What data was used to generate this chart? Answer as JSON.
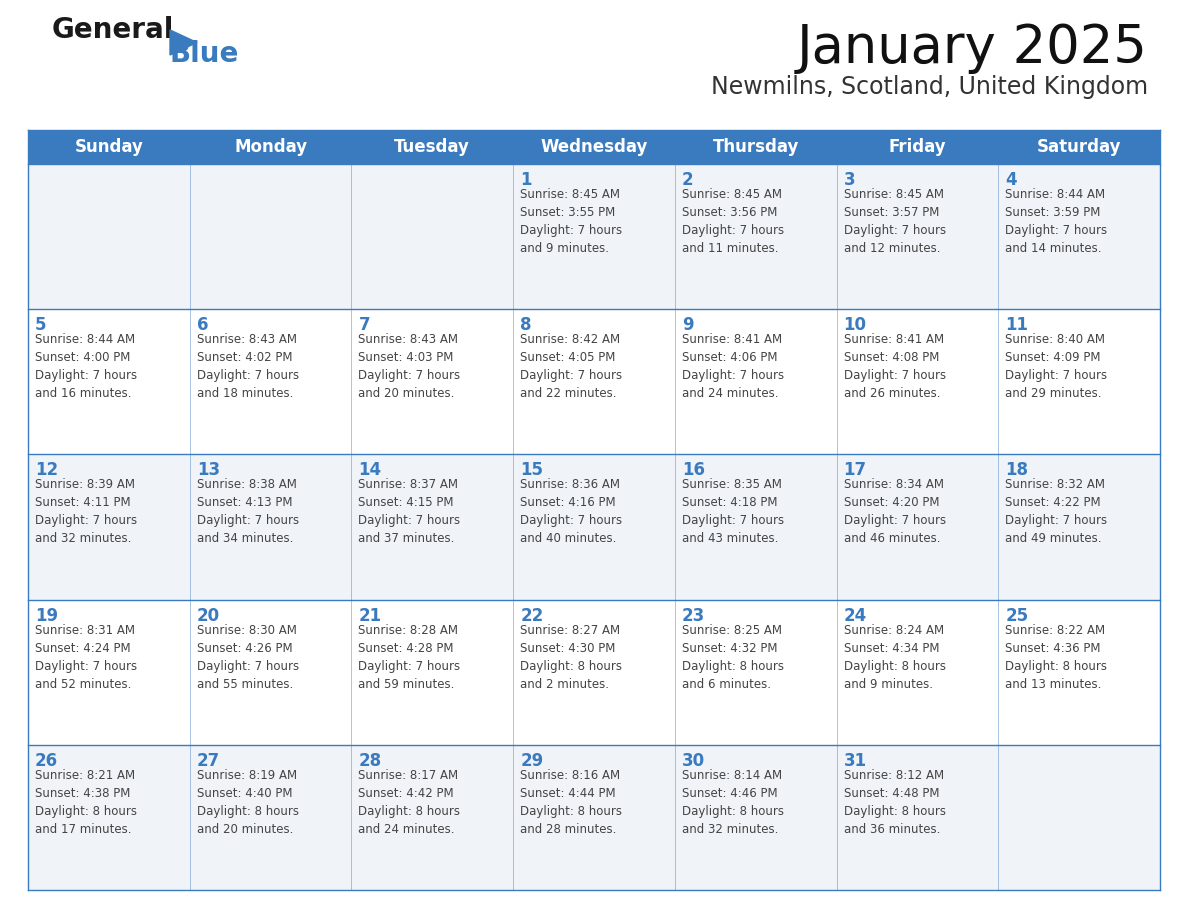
{
  "title": "January 2025",
  "subtitle": "Newmilns, Scotland, United Kingdom",
  "header_bg": "#3a7abf",
  "header_text_color": "#ffffff",
  "cell_bg_even": "#f0f4f8",
  "cell_bg_odd": "#ffffff",
  "border_color": "#3a7abf",
  "day_number_color": "#3a7abf",
  "cell_text_color": "#444444",
  "days_of_week": [
    "Sunday",
    "Monday",
    "Tuesday",
    "Wednesday",
    "Thursday",
    "Friday",
    "Saturday"
  ],
  "weeks": [
    [
      {
        "day": "",
        "info": ""
      },
      {
        "day": "",
        "info": ""
      },
      {
        "day": "",
        "info": ""
      },
      {
        "day": "1",
        "info": "Sunrise: 8:45 AM\nSunset: 3:55 PM\nDaylight: 7 hours\nand 9 minutes."
      },
      {
        "day": "2",
        "info": "Sunrise: 8:45 AM\nSunset: 3:56 PM\nDaylight: 7 hours\nand 11 minutes."
      },
      {
        "day": "3",
        "info": "Sunrise: 8:45 AM\nSunset: 3:57 PM\nDaylight: 7 hours\nand 12 minutes."
      },
      {
        "day": "4",
        "info": "Sunrise: 8:44 AM\nSunset: 3:59 PM\nDaylight: 7 hours\nand 14 minutes."
      }
    ],
    [
      {
        "day": "5",
        "info": "Sunrise: 8:44 AM\nSunset: 4:00 PM\nDaylight: 7 hours\nand 16 minutes."
      },
      {
        "day": "6",
        "info": "Sunrise: 8:43 AM\nSunset: 4:02 PM\nDaylight: 7 hours\nand 18 minutes."
      },
      {
        "day": "7",
        "info": "Sunrise: 8:43 AM\nSunset: 4:03 PM\nDaylight: 7 hours\nand 20 minutes."
      },
      {
        "day": "8",
        "info": "Sunrise: 8:42 AM\nSunset: 4:05 PM\nDaylight: 7 hours\nand 22 minutes."
      },
      {
        "day": "9",
        "info": "Sunrise: 8:41 AM\nSunset: 4:06 PM\nDaylight: 7 hours\nand 24 minutes."
      },
      {
        "day": "10",
        "info": "Sunrise: 8:41 AM\nSunset: 4:08 PM\nDaylight: 7 hours\nand 26 minutes."
      },
      {
        "day": "11",
        "info": "Sunrise: 8:40 AM\nSunset: 4:09 PM\nDaylight: 7 hours\nand 29 minutes."
      }
    ],
    [
      {
        "day": "12",
        "info": "Sunrise: 8:39 AM\nSunset: 4:11 PM\nDaylight: 7 hours\nand 32 minutes."
      },
      {
        "day": "13",
        "info": "Sunrise: 8:38 AM\nSunset: 4:13 PM\nDaylight: 7 hours\nand 34 minutes."
      },
      {
        "day": "14",
        "info": "Sunrise: 8:37 AM\nSunset: 4:15 PM\nDaylight: 7 hours\nand 37 minutes."
      },
      {
        "day": "15",
        "info": "Sunrise: 8:36 AM\nSunset: 4:16 PM\nDaylight: 7 hours\nand 40 minutes."
      },
      {
        "day": "16",
        "info": "Sunrise: 8:35 AM\nSunset: 4:18 PM\nDaylight: 7 hours\nand 43 minutes."
      },
      {
        "day": "17",
        "info": "Sunrise: 8:34 AM\nSunset: 4:20 PM\nDaylight: 7 hours\nand 46 minutes."
      },
      {
        "day": "18",
        "info": "Sunrise: 8:32 AM\nSunset: 4:22 PM\nDaylight: 7 hours\nand 49 minutes."
      }
    ],
    [
      {
        "day": "19",
        "info": "Sunrise: 8:31 AM\nSunset: 4:24 PM\nDaylight: 7 hours\nand 52 minutes."
      },
      {
        "day": "20",
        "info": "Sunrise: 8:30 AM\nSunset: 4:26 PM\nDaylight: 7 hours\nand 55 minutes."
      },
      {
        "day": "21",
        "info": "Sunrise: 8:28 AM\nSunset: 4:28 PM\nDaylight: 7 hours\nand 59 minutes."
      },
      {
        "day": "22",
        "info": "Sunrise: 8:27 AM\nSunset: 4:30 PM\nDaylight: 8 hours\nand 2 minutes."
      },
      {
        "day": "23",
        "info": "Sunrise: 8:25 AM\nSunset: 4:32 PM\nDaylight: 8 hours\nand 6 minutes."
      },
      {
        "day": "24",
        "info": "Sunrise: 8:24 AM\nSunset: 4:34 PM\nDaylight: 8 hours\nand 9 minutes."
      },
      {
        "day": "25",
        "info": "Sunrise: 8:22 AM\nSunset: 4:36 PM\nDaylight: 8 hours\nand 13 minutes."
      }
    ],
    [
      {
        "day": "26",
        "info": "Sunrise: 8:21 AM\nSunset: 4:38 PM\nDaylight: 8 hours\nand 17 minutes."
      },
      {
        "day": "27",
        "info": "Sunrise: 8:19 AM\nSunset: 4:40 PM\nDaylight: 8 hours\nand 20 minutes."
      },
      {
        "day": "28",
        "info": "Sunrise: 8:17 AM\nSunset: 4:42 PM\nDaylight: 8 hours\nand 24 minutes."
      },
      {
        "day": "29",
        "info": "Sunrise: 8:16 AM\nSunset: 4:44 PM\nDaylight: 8 hours\nand 28 minutes."
      },
      {
        "day": "30",
        "info": "Sunrise: 8:14 AM\nSunset: 4:46 PM\nDaylight: 8 hours\nand 32 minutes."
      },
      {
        "day": "31",
        "info": "Sunrise: 8:12 AM\nSunset: 4:48 PM\nDaylight: 8 hours\nand 36 minutes."
      },
      {
        "day": "",
        "info": ""
      }
    ]
  ],
  "logo_general_color": "#1a1a1a",
  "logo_blue_color": "#3a7abf",
  "figsize": [
    11.88,
    9.18
  ],
  "dpi": 100
}
